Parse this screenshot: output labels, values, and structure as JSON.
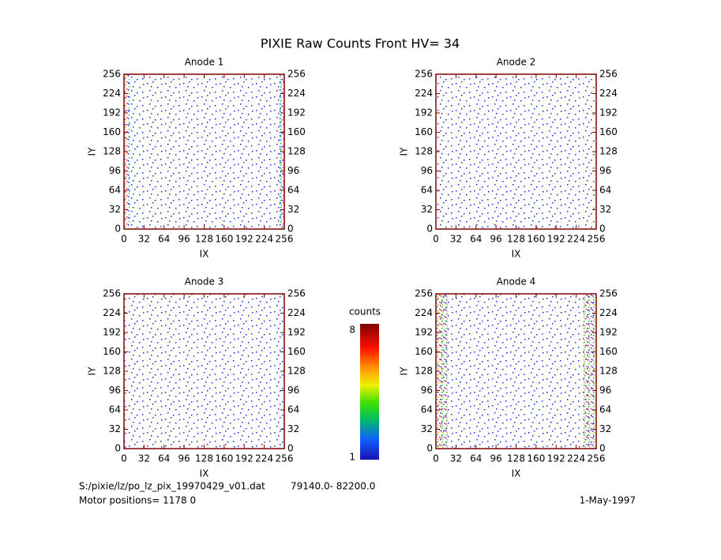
{
  "title": "PIXIE Raw Counts Front HV= 34",
  "chart_data": [
    {
      "type": "heatmap",
      "title": "Anode 1",
      "xlabel": "IX",
      "ylabel": "IY",
      "xlim": [
        0,
        256
      ],
      "ylim": [
        0,
        256
      ],
      "xticks": [
        0,
        32,
        64,
        96,
        128,
        160,
        192,
        224,
        256
      ],
      "yticks": [
        0,
        32,
        64,
        96,
        128,
        160,
        192,
        224,
        256
      ]
    },
    {
      "type": "heatmap",
      "title": "Anode 2",
      "xlabel": "IX",
      "ylabel": "IY",
      "xlim": [
        0,
        256
      ],
      "ylim": [
        0,
        256
      ],
      "xticks": [
        0,
        32,
        64,
        96,
        128,
        160,
        192,
        224,
        256
      ],
      "yticks": [
        0,
        32,
        64,
        96,
        128,
        160,
        192,
        224,
        256
      ]
    },
    {
      "type": "heatmap",
      "title": "Anode 3",
      "xlabel": "IX",
      "ylabel": "IY",
      "xlim": [
        0,
        256
      ],
      "ylim": [
        0,
        256
      ],
      "xticks": [
        0,
        32,
        64,
        96,
        128,
        160,
        192,
        224,
        256
      ],
      "yticks": [
        0,
        32,
        64,
        96,
        128,
        160,
        192,
        224,
        256
      ]
    },
    {
      "type": "heatmap",
      "title": "Anode 4",
      "xlabel": "IX",
      "ylabel": "IY",
      "xlim": [
        0,
        256
      ],
      "ylim": [
        0,
        256
      ],
      "xticks": [
        0,
        32,
        64,
        96,
        128,
        160,
        192,
        224,
        256
      ],
      "yticks": [
        0,
        32,
        64,
        96,
        128,
        160,
        192,
        224,
        256
      ]
    }
  ],
  "colorbar": {
    "label": "counts",
    "lim": [
      1,
      8
    ],
    "ticks": [
      1,
      8
    ]
  },
  "footer": {
    "file": "S:/pixie/lz/po_lz_pix_19970429_v01.dat",
    "range": "79140.0- 82200.0",
    "motor": "Motor positions= 1178 0",
    "date": "1-May-1997"
  }
}
